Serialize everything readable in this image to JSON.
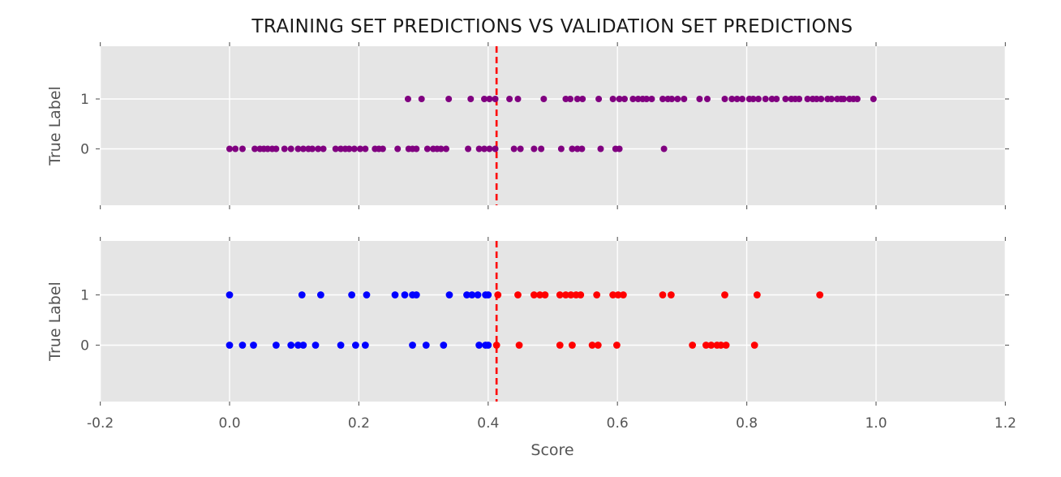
{
  "title": "TRAINING SET PREDICTIONS VS VALIDATION SET PREDICTIONS",
  "colors": {
    "plot_bg": "#e5e5e5",
    "grid": "#ffffff",
    "tick": "#666666",
    "label_text": "#555555",
    "title_text": "#1a1a1a",
    "train_points": "#800080",
    "val_below_threshold": "#0000ff",
    "val_above_threshold": "#ff0000",
    "threshold_line": "#ff0000"
  },
  "x_axis": {
    "label": "Score",
    "ticks": [
      "-0.2",
      "0.0",
      "0.2",
      "0.4",
      "0.6",
      "0.8",
      "1.0",
      "1.2"
    ],
    "values": [
      -0.2,
      0.0,
      0.2,
      0.4,
      0.6,
      0.8,
      1.0,
      1.2
    ]
  },
  "chart_data": [
    {
      "type": "scatter",
      "name": "training",
      "ylabel": "True Label",
      "yticks": [
        "1",
        "0"
      ],
      "xlim": [
        -0.2,
        1.2
      ],
      "grid": true,
      "threshold": 0.413,
      "series": [
        {
          "name": "train-true-1",
          "y": 1,
          "color": "#800080",
          "x": [
            0.276,
            0.297,
            0.339,
            0.373,
            0.394,
            0.402,
            0.411,
            0.433,
            0.446,
            0.486,
            0.52,
            0.527,
            0.538,
            0.546,
            0.571,
            0.593,
            0.603,
            0.611,
            0.624,
            0.632,
            0.639,
            0.645,
            0.653,
            0.67,
            0.678,
            0.684,
            0.693,
            0.703,
            0.727,
            0.739,
            0.766,
            0.777,
            0.785,
            0.793,
            0.804,
            0.81,
            0.818,
            0.829,
            0.839,
            0.846,
            0.86,
            0.869,
            0.875,
            0.881,
            0.894,
            0.902,
            0.908,
            0.915,
            0.925,
            0.931,
            0.94,
            0.946,
            0.95,
            0.959,
            0.965,
            0.971,
            0.996
          ]
        },
        {
          "name": "train-true-0",
          "y": 0,
          "color": "#800080",
          "x": [
            0.0,
            0.009,
            0.02,
            0.039,
            0.047,
            0.053,
            0.059,
            0.066,
            0.072,
            0.085,
            0.095,
            0.106,
            0.114,
            0.122,
            0.128,
            0.137,
            0.145,
            0.164,
            0.172,
            0.179,
            0.185,
            0.193,
            0.202,
            0.21,
            0.225,
            0.231,
            0.237,
            0.26,
            0.277,
            0.283,
            0.289,
            0.306,
            0.315,
            0.321,
            0.327,
            0.335,
            0.369,
            0.386,
            0.394,
            0.402,
            0.411,
            0.44,
            0.45,
            0.471,
            0.482,
            0.513,
            0.53,
            0.538,
            0.545,
            0.574,
            0.597,
            0.603,
            0.672
          ]
        }
      ]
    },
    {
      "type": "scatter",
      "name": "validation",
      "ylabel": "True Label",
      "yticks": [
        "1",
        "0"
      ],
      "xlim": [
        -0.2,
        1.2
      ],
      "grid": true,
      "threshold": 0.413,
      "series": [
        {
          "name": "val-true-1-below-threshold",
          "y": 1,
          "color": "#0000ff",
          "x": [
            0.0,
            0.112,
            0.141,
            0.189,
            0.212,
            0.256,
            0.271,
            0.283,
            0.289,
            0.34,
            0.367,
            0.375,
            0.384,
            0.396,
            0.4
          ]
        },
        {
          "name": "val-true-1-above-threshold",
          "y": 1,
          "color": "#ff0000",
          "x": [
            0.415,
            0.446,
            0.471,
            0.48,
            0.488,
            0.511,
            0.52,
            0.528,
            0.536,
            0.543,
            0.568,
            0.593,
            0.601,
            0.609,
            0.67,
            0.683,
            0.766,
            0.816,
            0.913
          ]
        },
        {
          "name": "val-true-0-below-threshold",
          "y": 0,
          "color": "#0000ff",
          "x": [
            0.0,
            0.02,
            0.037,
            0.072,
            0.095,
            0.106,
            0.114,
            0.133,
            0.172,
            0.195,
            0.21,
            0.283,
            0.304,
            0.331,
            0.386,
            0.396,
            0.4
          ]
        },
        {
          "name": "val-true-0-above-threshold",
          "y": 0,
          "color": "#ff0000",
          "x": [
            0.413,
            0.448,
            0.511,
            0.53,
            0.561,
            0.57,
            0.599,
            0.716,
            0.737,
            0.745,
            0.754,
            0.76,
            0.768,
            0.812
          ]
        }
      ]
    }
  ]
}
